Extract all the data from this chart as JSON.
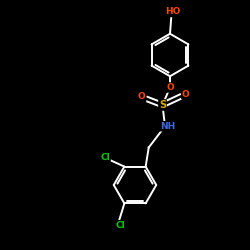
{
  "background_color": "#000000",
  "bond_color": "#ffffff",
  "atom_colors": {
    "O": "#ff4500",
    "S": "#d4aa00",
    "N": "#4169e1",
    "Cl": "#00cc00",
    "H": "#ffffff",
    "C": "#ffffff"
  },
  "figsize": [
    2.5,
    2.5
  ],
  "dpi": 100,
  "lw": 1.4,
  "ring_r": 0.85
}
